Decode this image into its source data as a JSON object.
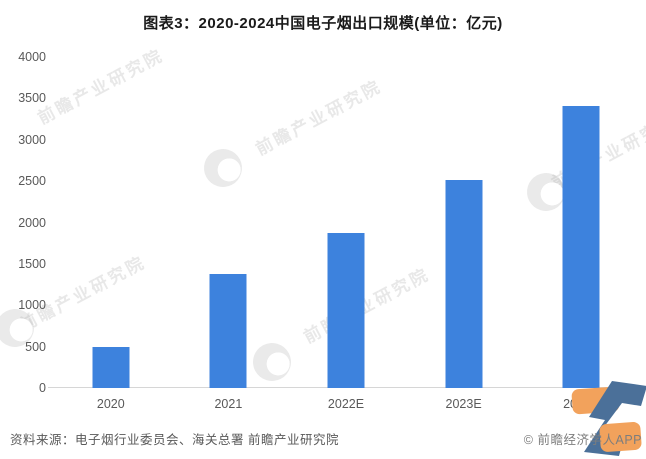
{
  "title": "图表3：2020-2024中国电子烟出口规模(单位：亿元)",
  "chart_data": {
    "type": "bar",
    "title": "图表3：2020-2024中国电子烟出口规模(单位：亿元)",
    "categories": [
      "2020",
      "2021",
      "2022E",
      "2023E",
      "2024E"
    ],
    "values": [
      490,
      1380,
      1870,
      2510,
      3410
    ],
    "unit": "亿元",
    "xlabel": "",
    "ylabel": "",
    "ylim": [
      0,
      4000
    ],
    "ytick_step": 500,
    "grid": false,
    "legend": false,
    "bar_color": "#3d82dd"
  },
  "footer": {
    "source": "资料来源：电子烟行业委员会、海关总署 前瞻产业研究院",
    "brand": "© 前瞻经济学人APP"
  },
  "watermark": {
    "text": "前瞻产业研究院",
    "logo": "qianzhan-circle-logo"
  },
  "colors": {
    "bar": "#3d82dd",
    "axis_line": "#d6d6d6",
    "tick_text": "#595959",
    "title_text": "#1a1a1a",
    "brand_text": "#7d7d7d",
    "logo_orange": "#f2a25c",
    "logo_blue": "#4b7099"
  }
}
